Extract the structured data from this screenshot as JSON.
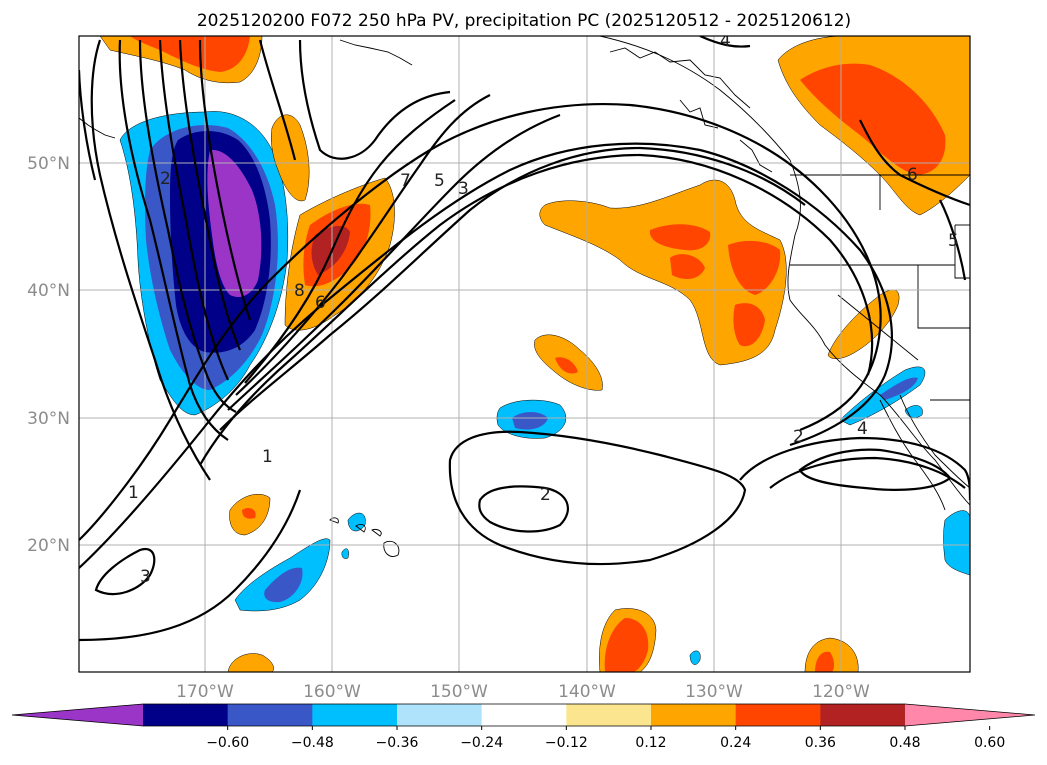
{
  "title": "2025120200 F072 250 hPa PV, precipitation PC (2025120512 - 2025120612)",
  "lon_ticks": [
    "170°W",
    "160°W",
    "150°W",
    "140°W",
    "130°W",
    "120°W"
  ],
  "lat_ticks": [
    "50°N",
    "40°N",
    "30°N",
    "20°N"
  ],
  "contour_labels": [
    "4",
    "6",
    "7",
    "5",
    "3",
    "8",
    "6",
    "2",
    "1",
    "1",
    "3",
    "2",
    "2",
    "4",
    "5"
  ],
  "colorbar": {
    "ticks": [
      "−0.60",
      "−0.48",
      "−0.36",
      "−0.24",
      "−0.12",
      "0.12",
      "0.24",
      "0.36",
      "0.48",
      "0.60"
    ],
    "colors": [
      "#9a35c8",
      "#000088",
      "#3a57c8",
      "#00bfff",
      "#aee3fb",
      "#ffffff",
      "#fbe58f",
      "#ffa500",
      "#ff4500",
      "#b22222",
      "#ff88aa"
    ]
  },
  "colors": {
    "strong_negative": "#9a35c8",
    "neg_3": "#000088",
    "neg_2": "#3a57c8",
    "neg_1": "#00bfff",
    "pos_1": "#ffa500",
    "pos_2": "#ff4500",
    "pos_3": "#b22222"
  }
}
